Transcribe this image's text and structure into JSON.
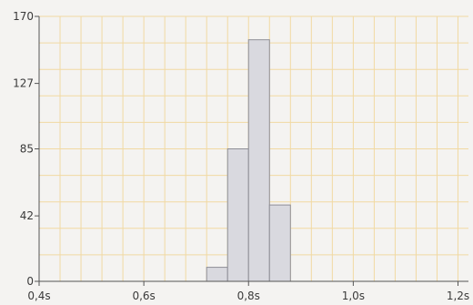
{
  "chart_data": {
    "type": "bar",
    "title": "",
    "xlabel": "",
    "ylabel": "",
    "x_ticks": [
      {
        "value": 0.4,
        "label": "0,4s"
      },
      {
        "value": 0.6,
        "label": "0,6s"
      },
      {
        "value": 0.8,
        "label": "0,8s"
      },
      {
        "value": 1.0,
        "label": "1,0s"
      },
      {
        "value": 1.2,
        "label": "1,2s"
      }
    ],
    "y_ticks": [
      {
        "value": 0,
        "label": "0"
      },
      {
        "value": 42,
        "label": "42"
      },
      {
        "value": 85,
        "label": "85"
      },
      {
        "value": 127,
        "label": "127"
      },
      {
        "value": 170,
        "label": "170"
      }
    ],
    "xlim": [
      0.4,
      1.22
    ],
    "ylim": [
      0,
      170
    ],
    "bin_width": 0.04,
    "bins": [
      {
        "start": 0.72,
        "value": 9
      },
      {
        "start": 0.76,
        "value": 85
      },
      {
        "start": 0.8,
        "value": 155
      },
      {
        "start": 0.84,
        "value": 49
      }
    ],
    "grid": true,
    "legend": "none",
    "colors": {
      "bar_fill": "#d9d9df",
      "bar_stroke": "#8e8e96",
      "grid": "#f1d9a2",
      "axis": "#555555"
    }
  }
}
